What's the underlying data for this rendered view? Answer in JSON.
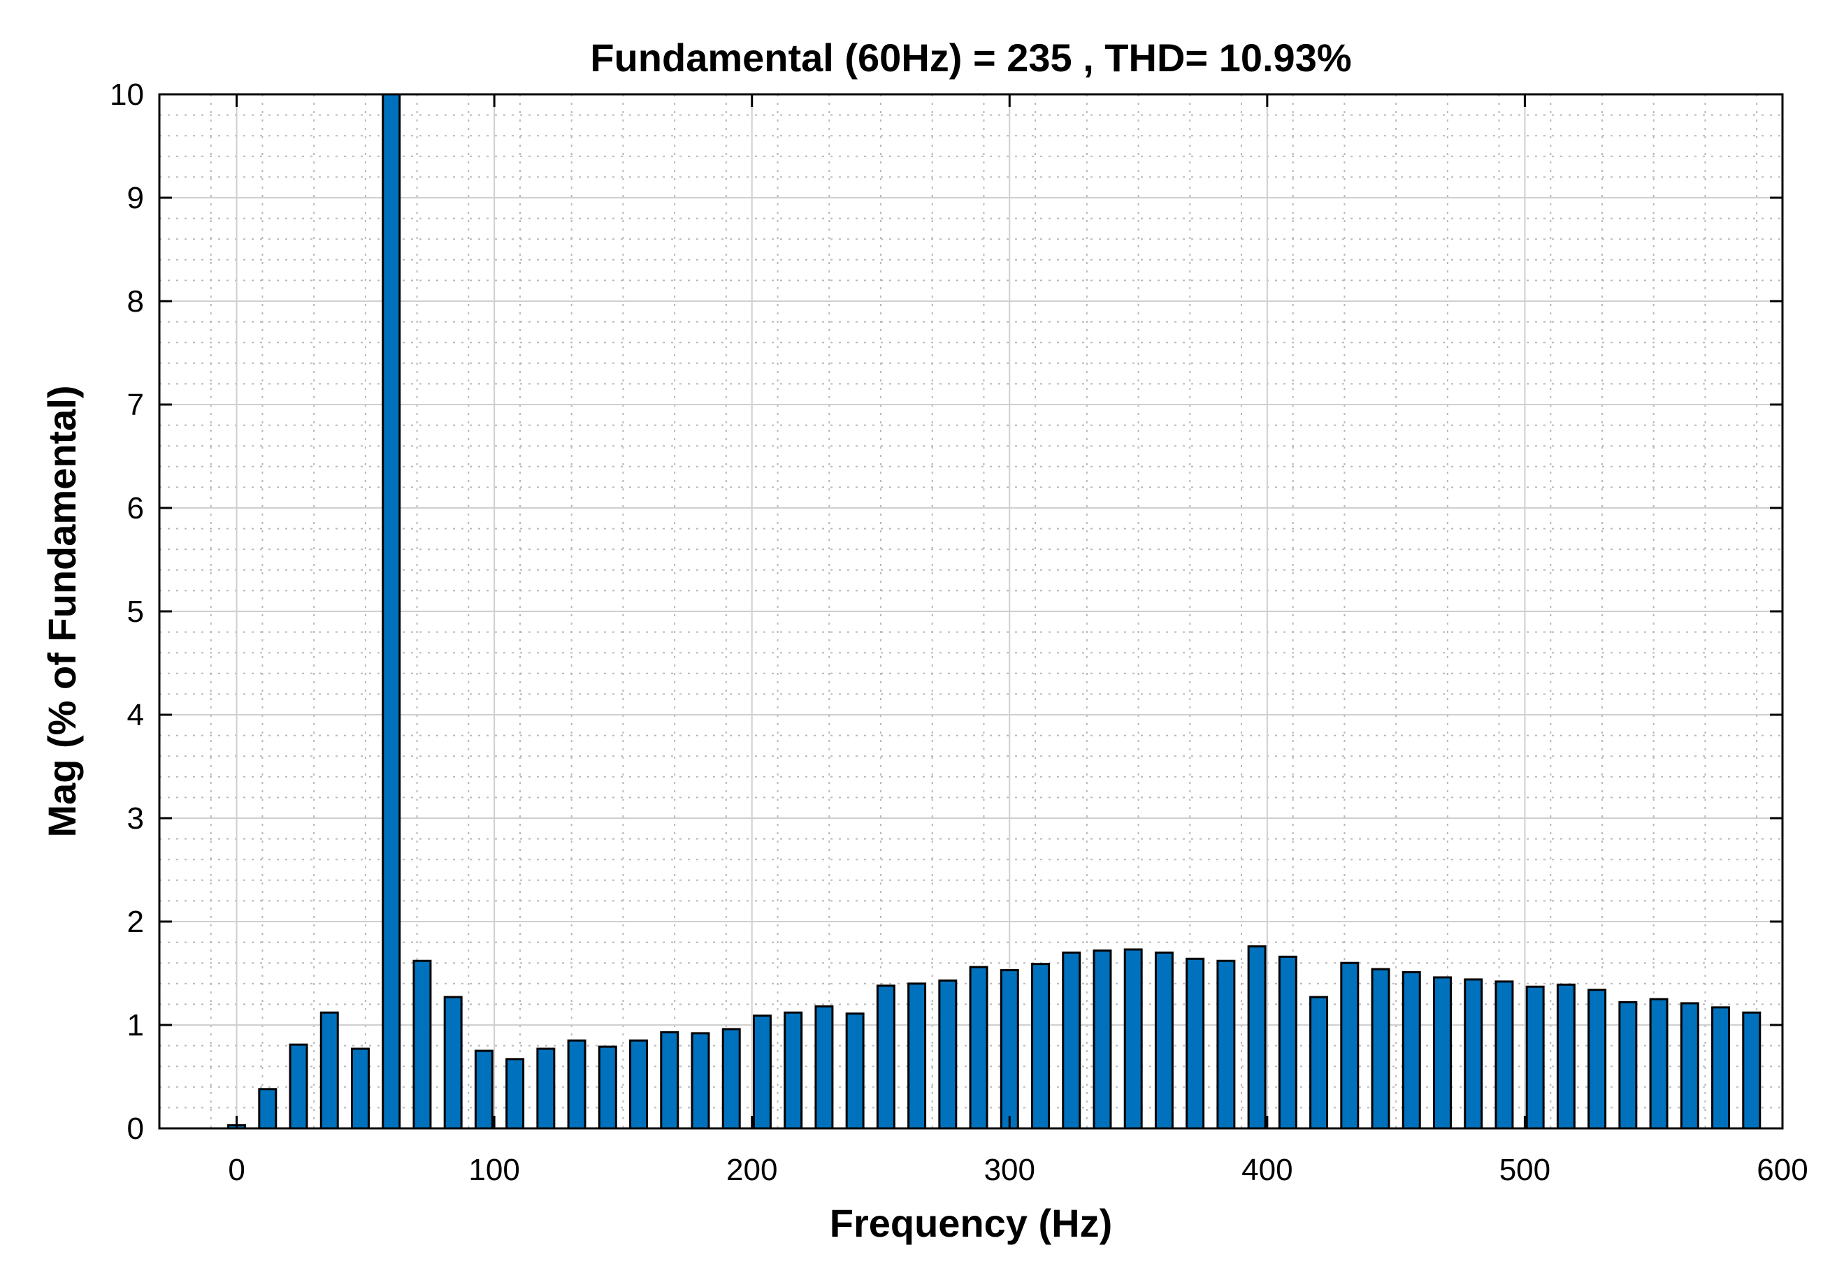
{
  "chart_data": {
    "type": "bar",
    "title": "Fundamental (60Hz) = 235 , THD= 10.93%",
    "xlabel": "Frequency (Hz)",
    "ylabel": "Mag (% of Fundamental)",
    "xlim": [
      -30,
      600
    ],
    "ylim": [
      0,
      10
    ],
    "xticks": [
      0,
      100,
      200,
      300,
      400,
      500,
      600
    ],
    "yticks": [
      0,
      1,
      2,
      3,
      4,
      5,
      6,
      7,
      8,
      9,
      10
    ],
    "grid": true,
    "bar_color": "#0072BD",
    "x": [
      0,
      12,
      24,
      36,
      48,
      60,
      72,
      84,
      96,
      108,
      120,
      132,
      144,
      156,
      168,
      180,
      192,
      204,
      216,
      228,
      240,
      252,
      264,
      276,
      288,
      300,
      312,
      324,
      336,
      348,
      360,
      372,
      384,
      396,
      408,
      420,
      432,
      444,
      456,
      468,
      480,
      492,
      504,
      516,
      528,
      540,
      552,
      564,
      576,
      588
    ],
    "values": [
      0.03,
      0.38,
      0.81,
      1.12,
      0.77,
      10,
      1.62,
      1.27,
      0.75,
      0.67,
      0.77,
      0.85,
      0.79,
      0.85,
      0.93,
      0.92,
      0.96,
      1.09,
      1.12,
      1.18,
      1.11,
      1.38,
      1.4,
      1.43,
      1.56,
      1.53,
      1.59,
      1.7,
      1.72,
      1.73,
      1.7,
      1.64,
      1.62,
      1.76,
      1.66,
      1.27,
      1.6,
      1.54,
      1.51,
      1.46,
      1.44,
      1.42,
      1.37,
      1.39,
      1.34,
      1.22,
      1.25,
      1.21,
      1.17,
      1.12
    ]
  }
}
